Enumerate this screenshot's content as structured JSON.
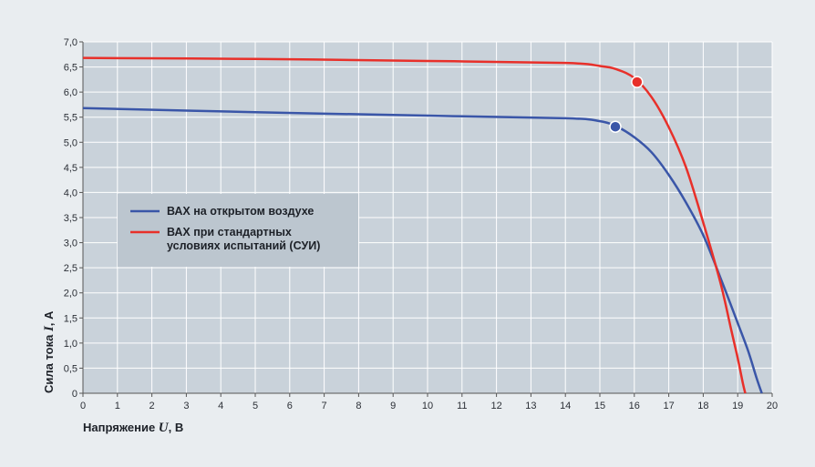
{
  "chart_data": {
    "type": "line",
    "xlabel": {
      "prefix": "Напряжение ",
      "var": "U",
      "suffix": ", В"
    },
    "ylabel": {
      "prefix": "Сила тока ",
      "var": "I",
      "suffix": ", А"
    },
    "xlim": [
      0,
      20
    ],
    "ylim": [
      0,
      7
    ],
    "x_ticks": [
      0,
      1,
      2,
      3,
      4,
      5,
      6,
      7,
      8,
      9,
      10,
      11,
      12,
      13,
      14,
      15,
      16,
      17,
      18,
      19,
      20
    ],
    "y_ticks": [
      {
        "value": 0,
        "label": "0"
      },
      {
        "value": 0.5,
        "label": "0,5"
      },
      {
        "value": 1,
        "label": "1,0"
      },
      {
        "value": 1.5,
        "label": "1,5"
      },
      {
        "value": 2,
        "label": "2,0"
      },
      {
        "value": 2.5,
        "label": "2,5"
      },
      {
        "value": 3,
        "label": "3,0"
      },
      {
        "value": 3.5,
        "label": "3,5"
      },
      {
        "value": 4,
        "label": "4,0"
      },
      {
        "value": 4.5,
        "label": "4,5"
      },
      {
        "value": 5,
        "label": "5,0"
      },
      {
        "value": 5.5,
        "label": "5,5"
      },
      {
        "value": 6,
        "label": "6,0"
      },
      {
        "value": 6.5,
        "label": "6,5"
      },
      {
        "value": 7,
        "label": "7,0"
      }
    ],
    "grid": true,
    "legend_position": "left-middle",
    "series": [
      {
        "name": "ВАХ на открытом воздухе",
        "color": "#3a56a8",
        "points": [
          [
            0,
            5.68
          ],
          [
            5,
            5.6
          ],
          [
            10,
            5.53
          ],
          [
            14,
            5.48
          ],
          [
            15,
            5.42
          ],
          [
            15.5,
            5.31
          ],
          [
            16,
            5.1
          ],
          [
            16.5,
            4.8
          ],
          [
            17,
            4.35
          ],
          [
            17.5,
            3.8
          ],
          [
            18,
            3.15
          ],
          [
            18.5,
            2.3
          ],
          [
            19,
            1.4
          ],
          [
            19.3,
            0.85
          ],
          [
            19.55,
            0.3
          ],
          [
            19.7,
            0
          ]
        ],
        "marker": [
          15.45,
          5.31
        ]
      },
      {
        "name": "ВАХ при стандартных условиях испытаний (СУИ)",
        "color": "#e8302a",
        "points": [
          [
            0,
            6.68
          ],
          [
            5,
            6.66
          ],
          [
            10,
            6.62
          ],
          [
            14,
            6.58
          ],
          [
            15,
            6.52
          ],
          [
            15.5,
            6.45
          ],
          [
            16,
            6.28
          ],
          [
            16.5,
            5.9
          ],
          [
            17,
            5.3
          ],
          [
            17.5,
            4.5
          ],
          [
            18,
            3.4
          ],
          [
            18.5,
            2.2
          ],
          [
            18.8,
            1.3
          ],
          [
            19,
            0.7
          ],
          [
            19.15,
            0.2
          ],
          [
            19.22,
            0
          ]
        ],
        "marker": [
          16.08,
          6.2
        ]
      }
    ]
  }
}
